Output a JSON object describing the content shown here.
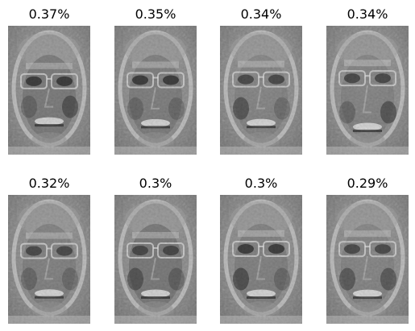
{
  "panels": [
    {
      "label": "0.37%"
    },
    {
      "label": "0.35%"
    },
    {
      "label": "0.34%"
    },
    {
      "label": "0.34%"
    },
    {
      "label": "0.32%"
    },
    {
      "label": "0.3%"
    },
    {
      "label": "0.3%"
    },
    {
      "label": "0.29%"
    }
  ],
  "colors": {
    "background": "#ffffff",
    "face_mid_gray": "#8c8c8c",
    "face_dark": "#2a2a2a",
    "face_light": "#e8e8e8"
  }
}
